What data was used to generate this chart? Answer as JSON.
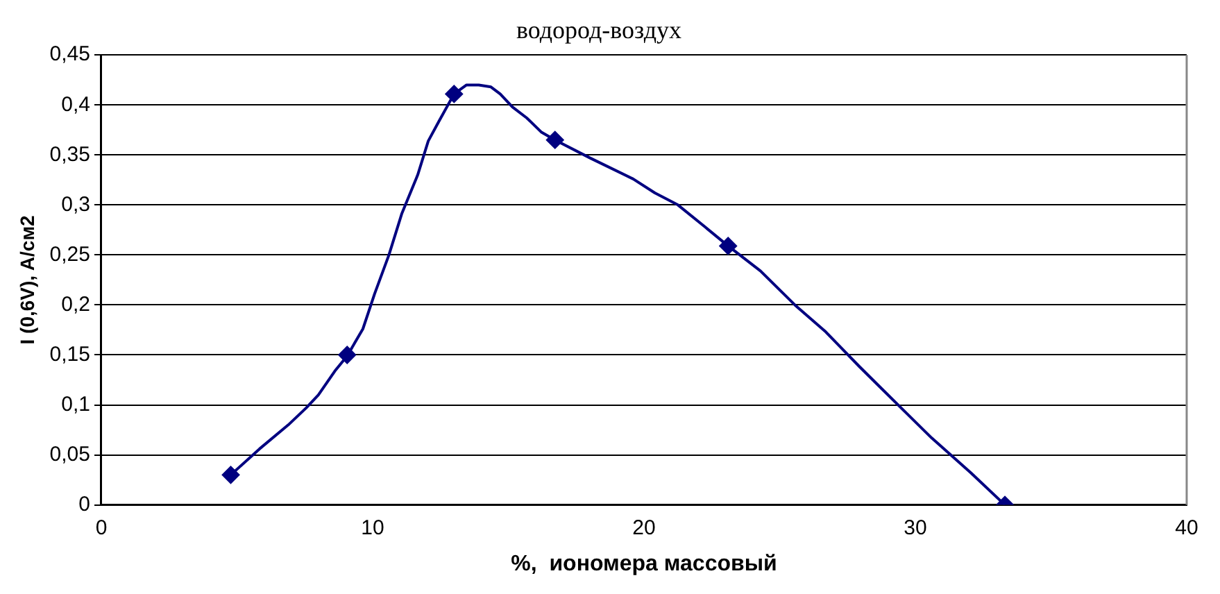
{
  "chart_data": {
    "type": "scatter",
    "title": "водород-воздух",
    "xlabel": "%,  иономера массовый",
    "ylabel": "I (0,6V), A/см2",
    "xlim": [
      0,
      40
    ],
    "xticks": [
      0,
      10,
      20,
      30,
      40
    ],
    "ylim": [
      0,
      0.45
    ],
    "yticks": [
      {
        "value": 0,
        "label": "0"
      },
      {
        "value": 0.05,
        "label": "0,05"
      },
      {
        "value": 0.1,
        "label": "0,1"
      },
      {
        "value": 0.15,
        "label": "0,15"
      },
      {
        "value": 0.2,
        "label": "0,2"
      },
      {
        "value": 0.25,
        "label": "0,25"
      },
      {
        "value": 0.3,
        "label": "0,3"
      },
      {
        "value": 0.35,
        "label": "0,35"
      },
      {
        "value": 0.4,
        "label": "0,4"
      },
      {
        "value": 0.45,
        "label": "0,45"
      }
    ],
    "grid": "y",
    "legend": false,
    "series": [
      {
        "type": "line",
        "color": "#000080",
        "marker": "none",
        "line_style": "solid",
        "x": [
          4.77,
          5.83,
          6.89,
          7.55,
          8.0,
          8.61,
          9.06,
          9.64,
          10.07,
          10.6,
          11.07,
          11.66,
          12.05,
          12.45,
          13.0,
          13.46,
          13.91,
          14.36,
          14.7,
          15.15,
          15.68,
          16.21,
          16.72,
          18.01,
          19.6,
          20.4,
          21.25,
          22.25,
          23.1,
          24.29,
          25.56,
          26.7,
          27.95,
          29.4,
          30.6,
          32.05,
          33.3
        ],
        "values": [
          0.03,
          0.056,
          0.08,
          0.097,
          0.11,
          0.134,
          0.149,
          0.176,
          0.211,
          0.25,
          0.291,
          0.33,
          0.364,
          0.384,
          0.411,
          0.42,
          0.42,
          0.418,
          0.411,
          0.398,
          0.387,
          0.373,
          0.365,
          0.347,
          0.326,
          0.312,
          0.3,
          0.278,
          0.259,
          0.234,
          0.2,
          0.173,
          0.138,
          0.099,
          0.067,
          0.032,
          0
        ]
      },
      {
        "type": "scatter",
        "color": "#000080",
        "marker": "diamond",
        "x": [
          4.77,
          9.06,
          13.0,
          16.72,
          23.1,
          33.3
        ],
        "values": [
          0.03,
          0.15,
          0.411,
          0.365,
          0.259,
          0
        ]
      }
    ]
  }
}
